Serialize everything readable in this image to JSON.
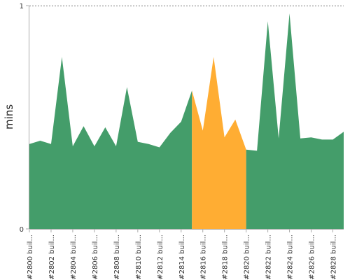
{
  "chart_data": {
    "type": "area",
    "ylabel": "mins",
    "ylim": [
      0,
      1
    ],
    "yticks": [
      "0",
      "1"
    ],
    "grid": "dashed line at top",
    "colors": {
      "success": "#449d6a",
      "failed": "#ffad33"
    },
    "x": [
      2800,
      2801,
      2802,
      2803,
      2804,
      2805,
      2806,
      2807,
      2808,
      2809,
      2810,
      2811,
      2812,
      2813,
      2814,
      2815,
      2816,
      2817,
      2818,
      2819,
      2820,
      2821,
      2822,
      2823,
      2824,
      2825,
      2826,
      2827,
      2828,
      2829
    ],
    "xtick_labels": [
      "#2800 buil...",
      "#2802 buil...",
      "#2804 buil...",
      "#2806 buil...",
      "#2808 buil...",
      "#2810 buil...",
      "#2812 buil...",
      "#2814 buil...",
      "#2816 buil...",
      "#2818 buil...",
      "#2820 buil...",
      "#2822 buil...",
      "#2824 buil...",
      "#2826 buil...",
      "#2828 buil..."
    ],
    "values": [
      0.38,
      0.395,
      0.38,
      0.77,
      0.37,
      0.46,
      0.37,
      0.455,
      0.37,
      0.635,
      0.39,
      0.38,
      0.365,
      0.43,
      0.48,
      0.62,
      0.44,
      0.77,
      0.41,
      0.49,
      0.355,
      0.35,
      0.93,
      0.405,
      0.965,
      0.405,
      0.41,
      0.4,
      0.4,
      0.435
    ],
    "status": [
      "success",
      "success",
      "success",
      "success",
      "success",
      "success",
      "success",
      "success",
      "success",
      "success",
      "success",
      "success",
      "success",
      "success",
      "success",
      "failed",
      "failed",
      "failed",
      "failed",
      "failed",
      "success",
      "success",
      "success",
      "success",
      "success",
      "success",
      "success",
      "success",
      "success",
      "success"
    ]
  }
}
